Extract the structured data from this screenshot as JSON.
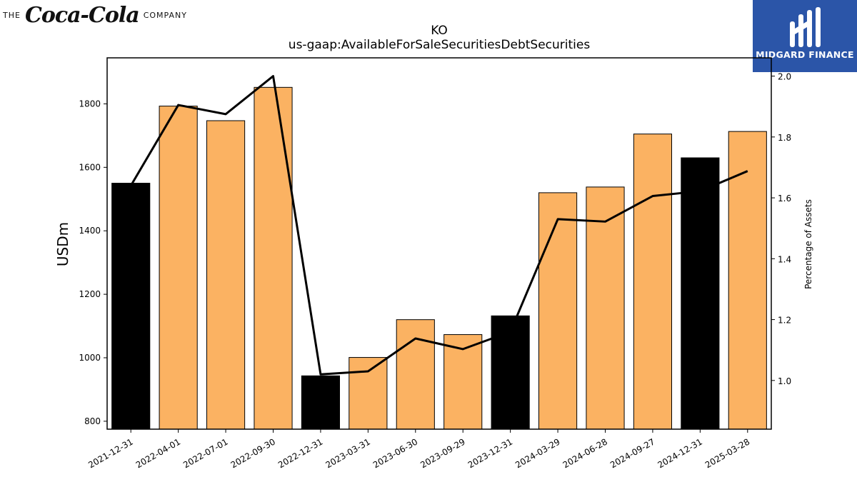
{
  "logo_left": {
    "prefix": "THE",
    "brand": "Coca-Cola",
    "suffix": "COMPANY"
  },
  "logo_right": {
    "name": "MIDGARD FINANCE",
    "color": "#2b55a8"
  },
  "chart_data": {
    "type": "bar",
    "title": "KO",
    "subtitle": "us-gaap:AvailableForSaleSecuritiesDebtSecurities",
    "ylabel": "USDm",
    "y2label": "Percentage of Assets",
    "ylim": [
      775,
      1945
    ],
    "y2lim": [
      0.84,
      2.06
    ],
    "yticks": [
      800,
      1000,
      1200,
      1400,
      1600,
      1800
    ],
    "y2ticks": [
      1.0,
      1.2,
      1.4,
      1.6,
      1.8,
      2.0
    ],
    "categories": [
      "2021-12-31",
      "2022-04-01",
      "2022-07-01",
      "2022-09-30",
      "2022-12-31",
      "2023-03-31",
      "2023-06-30",
      "2023-09-29",
      "2023-12-31",
      "2024-03-29",
      "2024-06-28",
      "2024-09-27",
      "2024-12-31",
      "2025-03-28"
    ],
    "series": [
      {
        "type": "bar",
        "axis": "left",
        "values": [
          1550,
          1793,
          1747,
          1852,
          943,
          1001,
          1120,
          1073,
          1132,
          1520,
          1538,
          1705,
          1630,
          1713
        ],
        "colors": [
          "#000000",
          "#fbb262",
          "#fbb262",
          "#fbb262",
          "#000000",
          "#fbb262",
          "#fbb262",
          "#fbb262",
          "#000000",
          "#fbb262",
          "#fbb262",
          "#fbb262",
          "#000000",
          "#fbb262"
        ]
      },
      {
        "type": "line",
        "axis": "right",
        "values": [
          1.64,
          1.905,
          1.875,
          2.0,
          1.02,
          1.03,
          1.138,
          1.103,
          1.16,
          1.53,
          1.522,
          1.606,
          1.622,
          1.688
        ],
        "color": "#000000"
      }
    ],
    "grid": false
  }
}
